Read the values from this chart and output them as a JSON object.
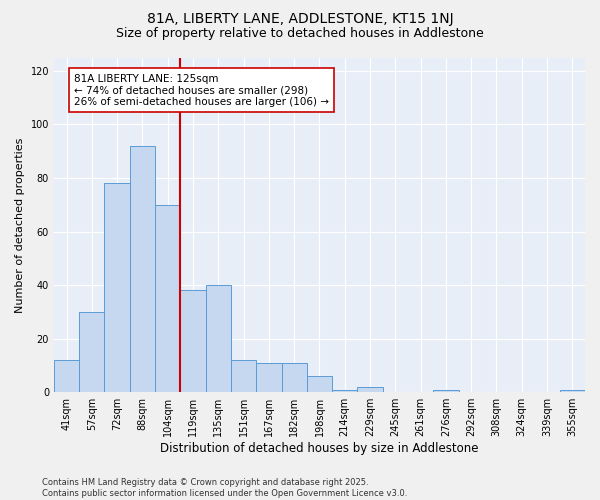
{
  "title_line1": "81A, LIBERTY LANE, ADDLESTONE, KT15 1NJ",
  "title_line2": "Size of property relative to detached houses in Addlestone",
  "xlabel": "Distribution of detached houses by size in Addlestone",
  "ylabel": "Number of detached properties",
  "categories": [
    "41sqm",
    "57sqm",
    "72sqm",
    "88sqm",
    "104sqm",
    "119sqm",
    "135sqm",
    "151sqm",
    "167sqm",
    "182sqm",
    "198sqm",
    "214sqm",
    "229sqm",
    "245sqm",
    "261sqm",
    "276sqm",
    "292sqm",
    "308sqm",
    "324sqm",
    "339sqm",
    "355sqm"
  ],
  "values": [
    12,
    30,
    78,
    92,
    70,
    38,
    40,
    12,
    11,
    11,
    6,
    1,
    2,
    0,
    0,
    1,
    0,
    0,
    0,
    0,
    1
  ],
  "bar_color": "#c5d8f0",
  "bar_edge_color": "#5b9bd5",
  "bar_width": 1.0,
  "vline_index": 5,
  "vline_color": "#cc0000",
  "annotation_text": "81A LIBERTY LANE: 125sqm\n← 74% of detached houses are smaller (298)\n26% of semi-detached houses are larger (106) →",
  "annotation_box_color": "#ffffff",
  "annotation_box_edge": "#cc0000",
  "annotation_fontsize": 7.5,
  "ylim": [
    0,
    125
  ],
  "yticks": [
    0,
    20,
    40,
    60,
    80,
    100,
    120
  ],
  "fig_bg_color": "#f0f0f0",
  "ax_bg_color": "#e8eef7",
  "grid_color": "#ffffff",
  "title_fontsize": 10,
  "subtitle_fontsize": 9,
  "xlabel_fontsize": 8.5,
  "ylabel_fontsize": 8,
  "tick_fontsize": 7,
  "footer_line1": "Contains HM Land Registry data © Crown copyright and database right 2025.",
  "footer_line2": "Contains public sector information licensed under the Open Government Licence v3.0.",
  "footer_fontsize": 6
}
